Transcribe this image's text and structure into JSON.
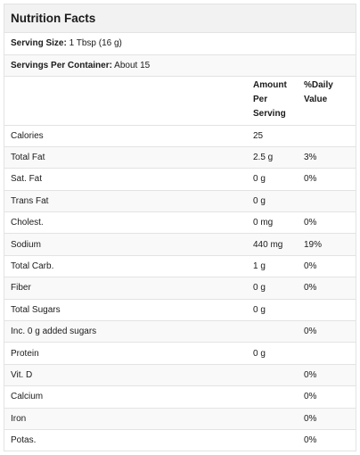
{
  "title": "Nutrition Facts",
  "serving_size": {
    "label": "Serving Size:",
    "value": "1 Tbsp (16 g)"
  },
  "servings_per_container": {
    "label": "Servings Per Container:",
    "value": "About 15"
  },
  "columns": {
    "amount_line1": "Amount",
    "amount_line2": "Per",
    "amount_line3": "Serving",
    "daily_line1": "%Daily",
    "daily_line2": "Value"
  },
  "rows": [
    {
      "name": "Calories",
      "amount": "25",
      "daily": ""
    },
    {
      "name": "Total Fat",
      "amount": "2.5 g",
      "daily": "3%"
    },
    {
      "name": "Sat. Fat",
      "amount": "0 g",
      "daily": "0%"
    },
    {
      "name": "Trans Fat",
      "amount": "0 g",
      "daily": ""
    },
    {
      "name": "Cholest.",
      "amount": "0 mg",
      "daily": "0%"
    },
    {
      "name": "Sodium",
      "amount": "440 mg",
      "daily": "19%"
    },
    {
      "name": "Total Carb.",
      "amount": "1 g",
      "daily": "0%"
    },
    {
      "name": "Fiber",
      "amount": "0 g",
      "daily": "0%"
    },
    {
      "name": "Total Sugars",
      "amount": "0 g",
      "daily": ""
    },
    {
      "name": "Inc. 0 g added sugars",
      "amount": "",
      "daily": "0%"
    },
    {
      "name": "Protein",
      "amount": "0 g",
      "daily": ""
    },
    {
      "name": "Vit. D",
      "amount": "",
      "daily": "0%"
    },
    {
      "name": "Calcium",
      "amount": "",
      "daily": "0%"
    },
    {
      "name": "Iron",
      "amount": "",
      "daily": "0%"
    },
    {
      "name": "Potas.",
      "amount": "",
      "daily": "0%"
    }
  ]
}
